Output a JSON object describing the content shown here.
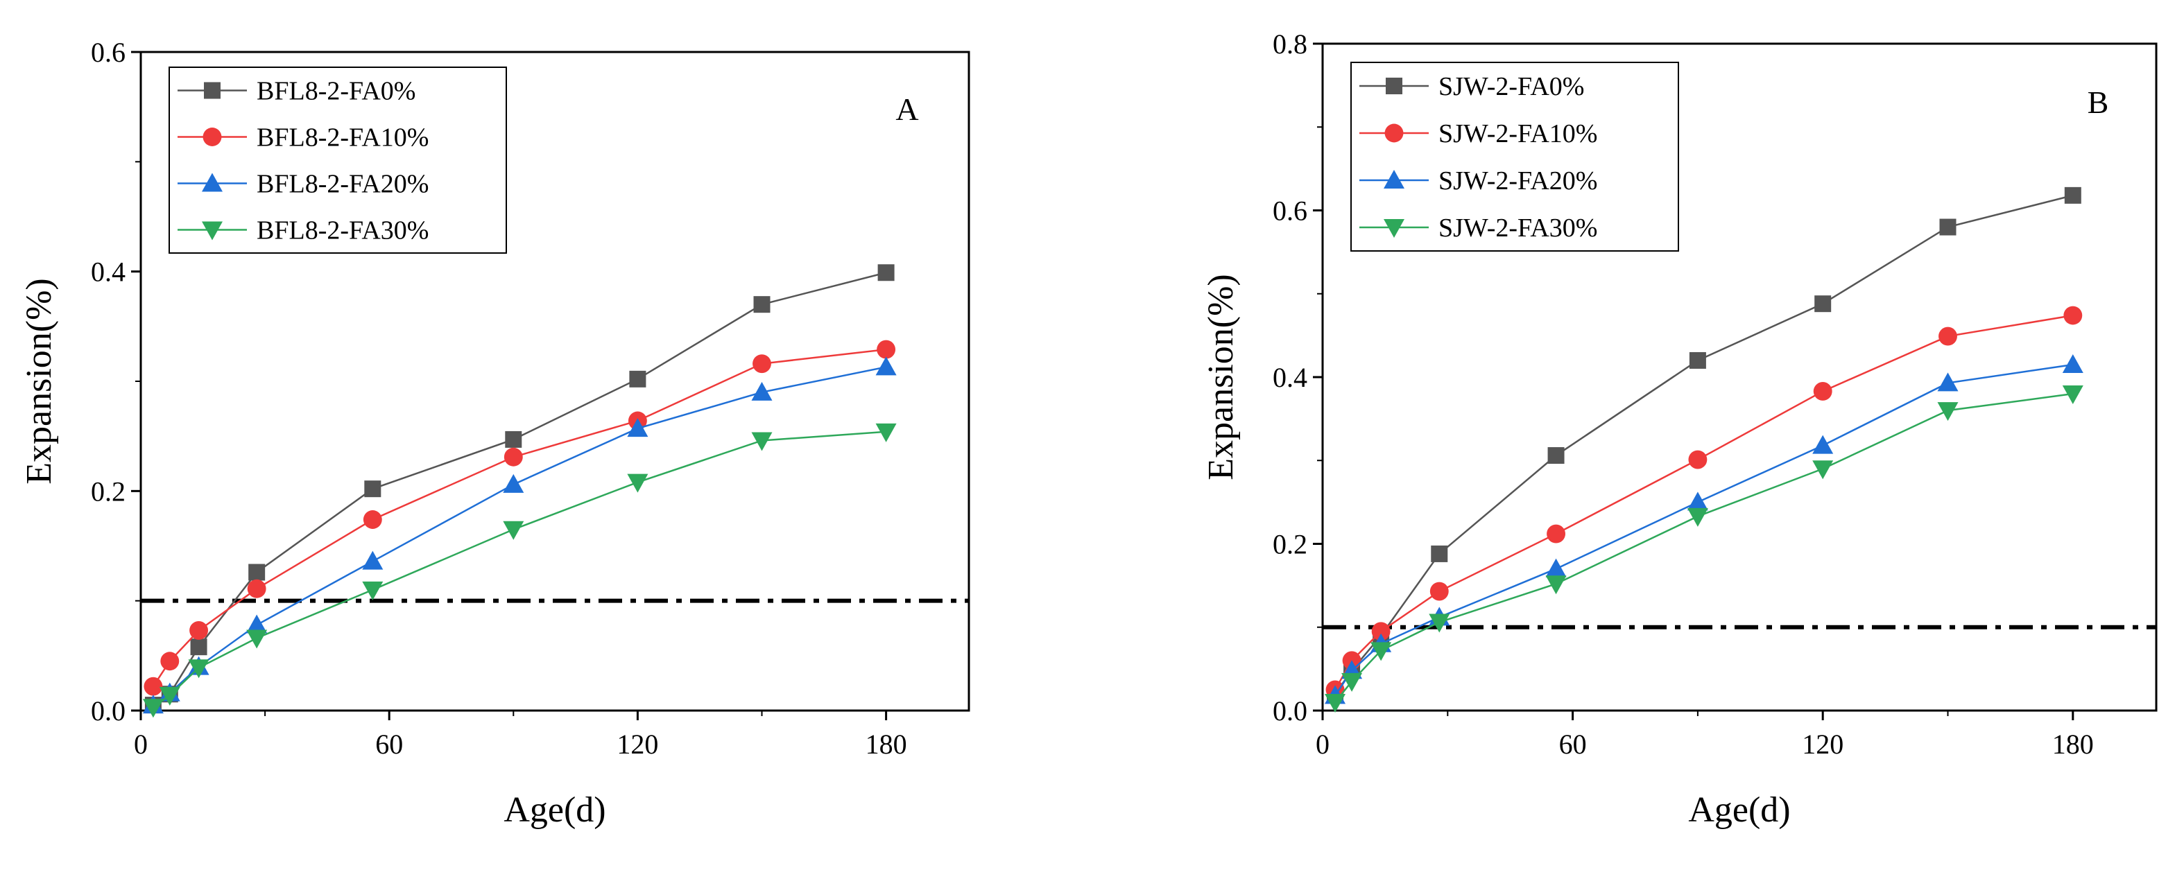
{
  "chart_data": [
    {
      "type": "line",
      "panel_label": "A",
      "xlabel": "Age(d)",
      "ylabel": "Expansion(%)",
      "xlim": [
        0,
        200
      ],
      "ylim": [
        0,
        0.6
      ],
      "xticks": [
        "0",
        "60",
        "120",
        "180"
      ],
      "xtick_values": [
        0,
        60,
        120,
        180
      ],
      "yticks": [
        "0.0",
        "0.2",
        "0.4",
        "0.6"
      ],
      "ytick_values": [
        0,
        0.2,
        0.4,
        0.6
      ],
      "reference_line": {
        "y": 0.1,
        "style": "dash-dot",
        "color": "#000000"
      },
      "legend_position": "top-left",
      "x": [
        3,
        7,
        14,
        28,
        56,
        90,
        120,
        150,
        180
      ],
      "series": [
        {
          "name": "BFL8-2-FA0%",
          "color": "#555555",
          "marker": "square",
          "values": [
            0.005,
            0.015,
            0.058,
            0.126,
            0.202,
            0.247,
            0.302,
            0.37,
            0.399
          ]
        },
        {
          "name": "BFL8-2-FA10%",
          "color": "#ee3a3a",
          "marker": "circle",
          "values": [
            0.022,
            0.045,
            0.073,
            0.111,
            0.174,
            0.231,
            0.264,
            0.316,
            0.329
          ]
        },
        {
          "name": "BFL8-2-FA20%",
          "color": "#1f6fd6",
          "marker": "triangle-up",
          "values": [
            0.005,
            0.016,
            0.04,
            0.078,
            0.136,
            0.206,
            0.257,
            0.29,
            0.313
          ]
        },
        {
          "name": "BFL8-2-FA30%",
          "color": "#2ea85a",
          "marker": "triangle-down",
          "values": [
            0.003,
            0.014,
            0.039,
            0.066,
            0.11,
            0.165,
            0.208,
            0.246,
            0.254
          ]
        }
      ]
    },
    {
      "type": "line",
      "panel_label": "B",
      "xlabel": "Age(d)",
      "ylabel": "Expansion(%)",
      "xlim": [
        0,
        200
      ],
      "ylim": [
        0,
        0.8
      ],
      "xticks": [
        "0",
        "60",
        "120",
        "180"
      ],
      "xtick_values": [
        0,
        60,
        120,
        180
      ],
      "yticks": [
        "0.0",
        "0.2",
        "0.4",
        "0.6",
        "0.8"
      ],
      "ytick_values": [
        0,
        0.2,
        0.4,
        0.6,
        0.8
      ],
      "reference_line": {
        "y": 0.1,
        "style": "dash-dot",
        "color": "#000000"
      },
      "legend_position": "top-left",
      "x": [
        3,
        7,
        14,
        28,
        56,
        90,
        120,
        150,
        180
      ],
      "series": [
        {
          "name": "SJW-2-FA0%",
          "color": "#555555",
          "marker": "square",
          "values": [
            0.02,
            0.048,
            0.09,
            0.188,
            0.306,
            0.42,
            0.488,
            0.58,
            0.618
          ]
        },
        {
          "name": "SJW-2-FA10%",
          "color": "#ee3a3a",
          "marker": "circle",
          "values": [
            0.025,
            0.06,
            0.095,
            0.143,
            0.212,
            0.301,
            0.383,
            0.449,
            0.474
          ]
        },
        {
          "name": "SJW-2-FA20%",
          "color": "#1f6fd6",
          "marker": "triangle-up",
          "values": [
            0.018,
            0.048,
            0.08,
            0.112,
            0.17,
            0.25,
            0.318,
            0.393,
            0.415
          ]
        },
        {
          "name": "SJW-2-FA30%",
          "color": "#2ea85a",
          "marker": "triangle-down",
          "values": [
            0.01,
            0.035,
            0.072,
            0.106,
            0.152,
            0.233,
            0.29,
            0.36,
            0.38
          ]
        }
      ]
    }
  ]
}
